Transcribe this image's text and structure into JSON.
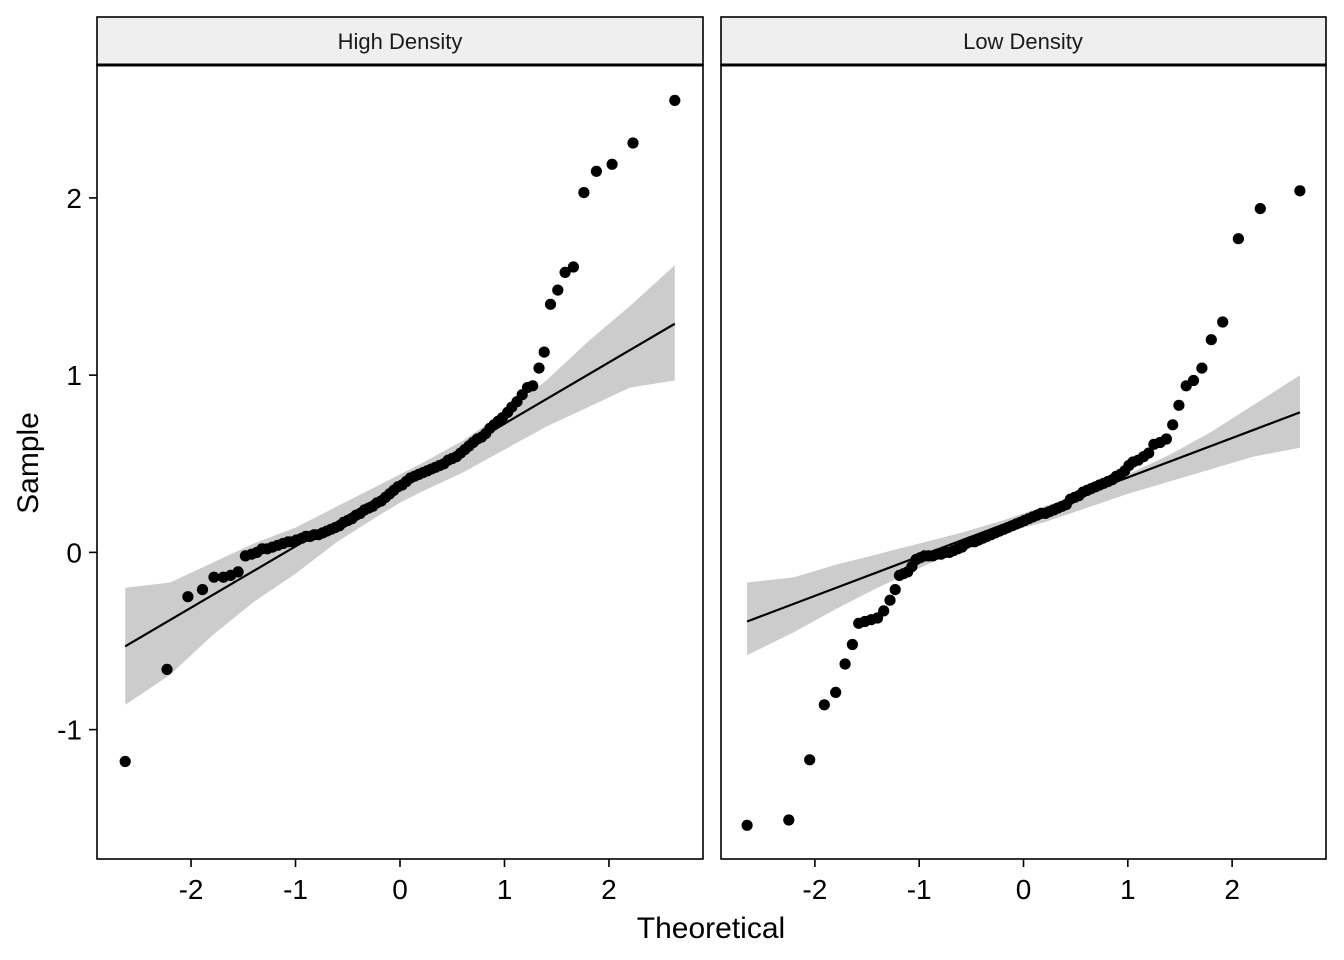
{
  "chart_data": {
    "type": "scatter",
    "chart_kind": "qq-plot faceted",
    "xlabel": "Theoretical",
    "ylabel": "Sample",
    "x_ticks": [
      -2,
      -1,
      0,
      1,
      2
    ],
    "y_ticks": [
      -1,
      0,
      1,
      2
    ],
    "xlim": [
      -2.9,
      2.9
    ],
    "ylim": [
      -1.73,
      2.75
    ],
    "grid": false,
    "colors": {
      "points": "#000000",
      "line": "#000000",
      "band": "#cccccc",
      "strip_bg": "#efefef",
      "panel_border": "#000000"
    },
    "panels": [
      {
        "title": "High Density",
        "line": [
          [
            -2.63,
            -0.53
          ],
          [
            2.63,
            1.29
          ]
        ],
        "band": {
          "x": [
            -2.63,
            -2.2,
            -1.8,
            -1.4,
            -1.0,
            -0.6,
            -0.2,
            0.0,
            0.2,
            0.6,
            1.0,
            1.4,
            1.8,
            2.2,
            2.63
          ],
          "upper": [
            -0.2,
            -0.17,
            -0.06,
            0.05,
            0.14,
            0.26,
            0.38,
            0.44,
            0.5,
            0.63,
            0.79,
            0.97,
            1.19,
            1.39,
            1.62
          ],
          "lower": [
            -0.86,
            -0.69,
            -0.47,
            -0.28,
            -0.12,
            0.06,
            0.21,
            0.28,
            0.34,
            0.45,
            0.58,
            0.71,
            0.82,
            0.93,
            0.97
          ]
        },
        "points": [
          [
            -2.63,
            -1.18
          ],
          [
            -2.23,
            -0.66
          ],
          [
            -2.03,
            -0.25
          ],
          [
            -1.89,
            -0.21
          ],
          [
            -1.78,
            -0.14
          ],
          [
            -1.69,
            -0.14
          ],
          [
            -1.62,
            -0.13
          ],
          [
            -1.55,
            -0.11
          ],
          [
            -1.48,
            -0.02
          ],
          [
            -1.42,
            -0.01
          ],
          [
            -1.37,
            0.0
          ],
          [
            -1.32,
            0.02
          ],
          [
            -1.27,
            0.02
          ],
          [
            -1.22,
            0.03
          ],
          [
            -1.17,
            0.04
          ],
          [
            -1.12,
            0.05
          ],
          [
            -1.07,
            0.06
          ],
          [
            -1.03,
            0.06
          ],
          [
            -0.99,
            0.07
          ],
          [
            -0.94,
            0.08
          ],
          [
            -0.9,
            0.09
          ],
          [
            -0.86,
            0.09
          ],
          [
            -0.82,
            0.1
          ],
          [
            -0.78,
            0.1
          ],
          [
            -0.74,
            0.11
          ],
          [
            -0.7,
            0.12
          ],
          [
            -0.66,
            0.13
          ],
          [
            -0.62,
            0.14
          ],
          [
            -0.58,
            0.15
          ],
          [
            -0.54,
            0.17
          ],
          [
            -0.5,
            0.18
          ],
          [
            -0.46,
            0.19
          ],
          [
            -0.42,
            0.21
          ],
          [
            -0.38,
            0.22
          ],
          [
            -0.34,
            0.24
          ],
          [
            -0.3,
            0.25
          ],
          [
            -0.26,
            0.26
          ],
          [
            -0.22,
            0.28
          ],
          [
            -0.18,
            0.29
          ],
          [
            -0.14,
            0.31
          ],
          [
            -0.1,
            0.33
          ],
          [
            -0.06,
            0.35
          ],
          [
            -0.02,
            0.37
          ],
          [
            0.02,
            0.38
          ],
          [
            0.06,
            0.4
          ],
          [
            0.1,
            0.42
          ],
          [
            0.14,
            0.43
          ],
          [
            0.18,
            0.44
          ],
          [
            0.22,
            0.45
          ],
          [
            0.26,
            0.46
          ],
          [
            0.3,
            0.47
          ],
          [
            0.34,
            0.48
          ],
          [
            0.38,
            0.49
          ],
          [
            0.42,
            0.5
          ],
          [
            0.46,
            0.52
          ],
          [
            0.5,
            0.53
          ],
          [
            0.54,
            0.54
          ],
          [
            0.58,
            0.56
          ],
          [
            0.62,
            0.58
          ],
          [
            0.66,
            0.6
          ],
          [
            0.7,
            0.62
          ],
          [
            0.74,
            0.64
          ],
          [
            0.78,
            0.65
          ],
          [
            0.82,
            0.67
          ],
          [
            0.86,
            0.7
          ],
          [
            0.9,
            0.72
          ],
          [
            0.94,
            0.74
          ],
          [
            0.98,
            0.76
          ],
          [
            1.03,
            0.79
          ],
          [
            1.07,
            0.82
          ],
          [
            1.12,
            0.85
          ],
          [
            1.17,
            0.89
          ],
          [
            1.22,
            0.93
          ],
          [
            1.27,
            0.94
          ],
          [
            1.33,
            1.04
          ],
          [
            1.38,
            1.13
          ],
          [
            1.44,
            1.4
          ],
          [
            1.51,
            1.48
          ],
          [
            1.58,
            1.58
          ],
          [
            1.66,
            1.61
          ],
          [
            1.76,
            2.03
          ],
          [
            1.88,
            2.15
          ],
          [
            2.03,
            2.19
          ],
          [
            2.23,
            2.31
          ],
          [
            2.63,
            2.55
          ]
        ]
      },
      {
        "title": "Low Density",
        "line": [
          [
            -2.65,
            -0.39
          ],
          [
            2.65,
            0.79
          ]
        ],
        "band": {
          "x": [
            -2.65,
            -2.2,
            -1.8,
            -1.4,
            -1.0,
            -0.6,
            -0.2,
            0.0,
            0.2,
            0.6,
            1.0,
            1.4,
            1.8,
            2.2,
            2.65
          ],
          "upper": [
            -0.17,
            -0.14,
            -0.07,
            -0.01,
            0.05,
            0.11,
            0.18,
            0.22,
            0.26,
            0.34,
            0.44,
            0.55,
            0.68,
            0.83,
            1.0
          ],
          "lower": [
            -0.58,
            -0.45,
            -0.32,
            -0.2,
            -0.09,
            0.02,
            0.1,
            0.14,
            0.17,
            0.25,
            0.33,
            0.4,
            0.47,
            0.54,
            0.59
          ]
        },
        "points": [
          [
            -2.65,
            -1.54
          ],
          [
            -2.25,
            -1.51
          ],
          [
            -2.05,
            -1.17
          ],
          [
            -1.91,
            -0.86
          ],
          [
            -1.8,
            -0.79
          ],
          [
            -1.71,
            -0.63
          ],
          [
            -1.64,
            -0.52
          ],
          [
            -1.58,
            -0.4
          ],
          [
            -1.52,
            -0.39
          ],
          [
            -1.46,
            -0.38
          ],
          [
            -1.4,
            -0.37
          ],
          [
            -1.34,
            -0.33
          ],
          [
            -1.28,
            -0.27
          ],
          [
            -1.23,
            -0.21
          ],
          [
            -1.19,
            -0.13
          ],
          [
            -1.15,
            -0.12
          ],
          [
            -1.11,
            -0.11
          ],
          [
            -1.07,
            -0.08
          ],
          [
            -1.03,
            -0.04
          ],
          [
            -0.99,
            -0.03
          ],
          [
            -0.95,
            -0.02
          ],
          [
            -0.91,
            -0.02
          ],
          [
            -0.87,
            -0.02
          ],
          [
            -0.83,
            -0.01
          ],
          [
            -0.79,
            -0.01
          ],
          [
            -0.75,
            0.0
          ],
          [
            -0.71,
            0.0
          ],
          [
            -0.67,
            0.01
          ],
          [
            -0.63,
            0.02
          ],
          [
            -0.59,
            0.03
          ],
          [
            -0.55,
            0.05
          ],
          [
            -0.51,
            0.06
          ],
          [
            -0.47,
            0.06
          ],
          [
            -0.43,
            0.07
          ],
          [
            -0.39,
            0.08
          ],
          [
            -0.35,
            0.09
          ],
          [
            -0.31,
            0.1
          ],
          [
            -0.27,
            0.11
          ],
          [
            -0.23,
            0.12
          ],
          [
            -0.19,
            0.13
          ],
          [
            -0.15,
            0.14
          ],
          [
            -0.11,
            0.15
          ],
          [
            -0.07,
            0.16
          ],
          [
            -0.03,
            0.17
          ],
          [
            0.01,
            0.18
          ],
          [
            0.05,
            0.19
          ],
          [
            0.09,
            0.2
          ],
          [
            0.13,
            0.21
          ],
          [
            0.17,
            0.22
          ],
          [
            0.21,
            0.22
          ],
          [
            0.25,
            0.23
          ],
          [
            0.29,
            0.24
          ],
          [
            0.33,
            0.25
          ],
          [
            0.37,
            0.26
          ],
          [
            0.41,
            0.27
          ],
          [
            0.45,
            0.3
          ],
          [
            0.49,
            0.31
          ],
          [
            0.53,
            0.32
          ],
          [
            0.57,
            0.34
          ],
          [
            0.61,
            0.35
          ],
          [
            0.65,
            0.36
          ],
          [
            0.69,
            0.37
          ],
          [
            0.73,
            0.38
          ],
          [
            0.77,
            0.39
          ],
          [
            0.81,
            0.4
          ],
          [
            0.85,
            0.41
          ],
          [
            0.89,
            0.43
          ],
          [
            0.93,
            0.44
          ],
          [
            0.97,
            0.46
          ],
          [
            1.01,
            0.49
          ],
          [
            1.05,
            0.51
          ],
          [
            1.1,
            0.52
          ],
          [
            1.15,
            0.54
          ],
          [
            1.2,
            0.56
          ],
          [
            1.25,
            0.61
          ],
          [
            1.31,
            0.62
          ],
          [
            1.37,
            0.64
          ],
          [
            1.43,
            0.72
          ],
          [
            1.49,
            0.83
          ],
          [
            1.56,
            0.94
          ],
          [
            1.63,
            0.97
          ],
          [
            1.71,
            1.04
          ],
          [
            1.8,
            1.2
          ],
          [
            1.91,
            1.3
          ],
          [
            2.06,
            1.77
          ],
          [
            2.27,
            1.94
          ],
          [
            2.65,
            2.04
          ]
        ]
      }
    ]
  }
}
